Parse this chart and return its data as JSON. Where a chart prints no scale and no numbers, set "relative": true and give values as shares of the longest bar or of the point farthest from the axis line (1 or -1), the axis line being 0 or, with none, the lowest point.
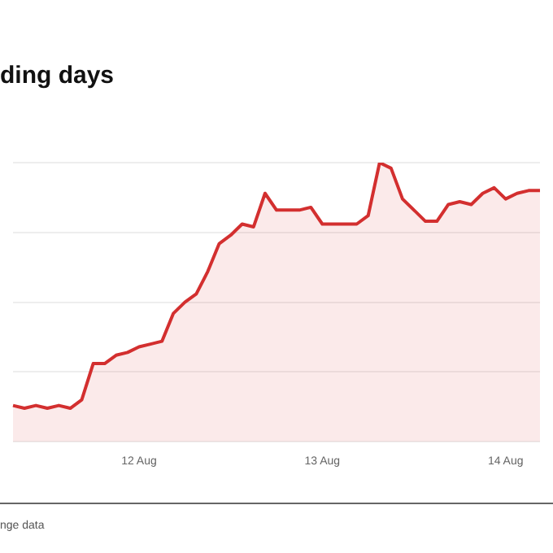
{
  "chart_data": {
    "type": "area",
    "title": "ding days",
    "annotations": [
      "nge data"
    ],
    "relative": true,
    "grid": "y",
    "legend": false,
    "marker": "none",
    "categories": [
      null,
      null,
      null,
      null,
      null,
      null,
      null,
      null,
      null,
      null,
      null,
      "12 Aug",
      null,
      null,
      null,
      null,
      null,
      null,
      null,
      null,
      null,
      null,
      null,
      null,
      null,
      null,
      null,
      "13 Aug",
      null,
      null,
      null,
      null,
      null,
      null,
      null,
      null,
      null,
      null,
      null,
      null,
      null,
      null,
      null,
      "14 Aug",
      null,
      null,
      null
    ],
    "series": [
      {
        "color": "#d32f2f",
        "values": [
          0.13,
          0.12,
          0.13,
          0.12,
          0.13,
          0.12,
          0.15,
          0.28,
          0.28,
          0.31,
          0.32,
          0.34,
          0.35,
          0.36,
          0.46,
          0.5,
          0.53,
          0.61,
          0.71,
          0.74,
          0.78,
          0.77,
          0.89,
          0.83,
          0.83,
          0.83,
          0.84,
          0.78,
          0.78,
          0.78,
          0.78,
          0.81,
          1,
          0.98,
          0.87,
          0.83,
          0.79,
          0.79,
          0.85,
          0.86,
          0.85,
          0.89,
          0.91,
          0.87,
          0.89,
          0.9,
          0.9
        ]
      }
    ]
  }
}
